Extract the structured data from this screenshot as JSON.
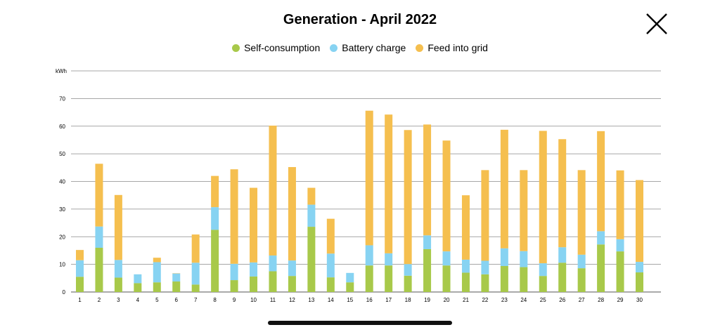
{
  "header": {
    "title": "Generation - April 2022",
    "close_icon": "close-icon"
  },
  "legend": [
    {
      "label": "Self-consumption",
      "color": "#a8c94a"
    },
    {
      "label": "Battery charge",
      "color": "#87d3f2"
    },
    {
      "label": "Feed into grid",
      "color": "#f5bf4f"
    }
  ],
  "chart_data": {
    "type": "bar",
    "stacked": true,
    "title": "Generation - April 2022",
    "ylabel": "kWh",
    "ylim": [
      0,
      80
    ],
    "yticks": [
      0,
      10,
      20,
      30,
      40,
      50,
      60,
      70
    ],
    "grid": true,
    "legend_position": "top-center",
    "categories": [
      "1",
      "2",
      "3",
      "4",
      "5",
      "6",
      "7",
      "8",
      "9",
      "10",
      "11",
      "12",
      "13",
      "14",
      "15",
      "16",
      "17",
      "18",
      "19",
      "20",
      "21",
      "22",
      "23",
      "24",
      "25",
      "26",
      "27",
      "28",
      "29",
      "30"
    ],
    "series": [
      {
        "name": "Self-consumption",
        "color": "#a8c94a",
        "values": [
          5.5,
          16,
          5.2,
          3.2,
          3.5,
          3.8,
          2.7,
          22.5,
          4.3,
          5.6,
          7.5,
          5.8,
          23.6,
          5.3,
          3.5,
          9.6,
          9.6,
          5.9,
          15.5,
          9.6,
          7,
          6.4,
          9.4,
          9,
          5.8,
          10.6,
          8.6,
          17.2,
          14.7,
          7.1
        ]
      },
      {
        "name": "Battery charge",
        "color": "#87d3f2",
        "values": [
          6,
          7.7,
          6.4,
          3.2,
          7.3,
          2.9,
          7.9,
          8.2,
          5.9,
          5.1,
          5.7,
          5.6,
          8,
          8.6,
          3.4,
          7.3,
          4.4,
          4.2,
          5,
          5.1,
          4.7,
          4.9,
          6.4,
          5.8,
          4.6,
          5.6,
          4.9,
          4.8,
          4.4,
          3.8
        ]
      },
      {
        "name": "Feed into grid",
        "color": "#f5bf4f",
        "values": [
          3.7,
          22.7,
          23.5,
          0,
          1.6,
          0.1,
          10.2,
          11.3,
          34.2,
          27,
          47,
          33.8,
          6.1,
          12.6,
          0,
          48.7,
          50.2,
          48.5,
          40.1,
          40.1,
          23.3,
          32.8,
          42.9,
          29.3,
          47.9,
          39.1,
          30.6,
          36.2,
          24.9,
          29.6
        ]
      }
    ]
  }
}
